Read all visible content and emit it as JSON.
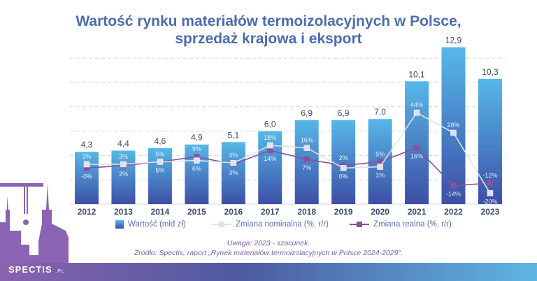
{
  "title_line1": "Wartość rynku materiałów termoizolacyjnych w Polsce,",
  "title_line2": "sprzedaż krajowa i eksport",
  "chart_data": {
    "type": "bar+line",
    "categories": [
      "2012",
      "2013",
      "2014",
      "2015",
      "2016",
      "2017",
      "2018",
      "2019",
      "2020",
      "2021",
      "2022",
      "2023"
    ],
    "bar_series": {
      "name": "Wartość (mld zł)",
      "values": [
        4.3,
        4.4,
        4.6,
        4.9,
        5.1,
        6.0,
        6.9,
        6.9,
        7.0,
        10.1,
        12.9,
        10.3
      ],
      "labels": [
        "4,3",
        "4,4",
        "4,6",
        "4,9",
        "5,1",
        "6,0",
        "6,9",
        "6,9",
        "7,0",
        "10,1",
        "12,9",
        "10,3"
      ],
      "color": "#3f7fd0"
    },
    "line_series": [
      {
        "name": "Zmiana nominalna (%, r/r)",
        "values": [
          3,
          3,
          5,
          6,
          4,
          18,
          16,
          0,
          1,
          44,
          28,
          -20
        ],
        "labels": [
          "3%",
          "3%",
          "5%",
          "6%",
          "4%",
          "18%",
          "16%",
          "0%",
          "1%",
          "44%",
          "28%",
          "-20%"
        ],
        "color": "#dde3ee"
      },
      {
        "name": "Zmiana realna (%, r/r)",
        "values": [
          0,
          2,
          5,
          9,
          3,
          14,
          7,
          2,
          5,
          16,
          -14,
          -12
        ],
        "labels": [
          "-0%",
          "2%",
          "5%",
          "9%",
          "3%",
          "14%",
          "7%",
          "2%",
          "5%",
          "16%",
          "-14%",
          "-12%"
        ],
        "color": "#8a4f9e"
      }
    ],
    "bar_ylim": [
      0,
      14
    ],
    "grid": true,
    "legend": "bottom"
  },
  "note": "Uwaga: 2023 - szacunek.",
  "source": "Źródło: Spectis, raport „Rynek materiałów termoizolacyjnych w Polsce 2024-2029\".",
  "logo": {
    "text": "SPECTIS",
    "suffix": ".PL"
  }
}
